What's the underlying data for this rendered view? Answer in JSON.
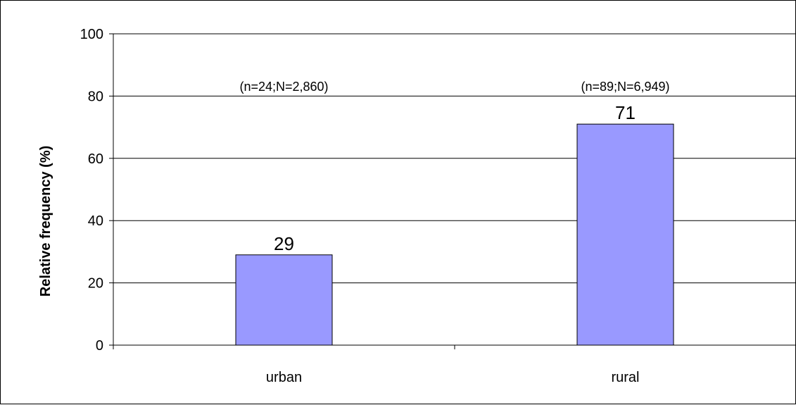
{
  "chart_data": {
    "type": "bar",
    "title": "",
    "xlabel": "",
    "ylabel": "Relative frequency (%)",
    "categories": [
      "urban",
      "rural"
    ],
    "values": [
      29,
      71
    ],
    "data_labels": [
      "29",
      "71"
    ],
    "annotations": [
      "(n=24;N=2,860)",
      "(n=89;N=6,949)"
    ],
    "annotation_y": 83,
    "ylim": [
      0,
      100
    ],
    "yticks": [
      0,
      20,
      40,
      60,
      80,
      100
    ],
    "grid": true,
    "legend": "none",
    "bar_color": "#9999ff",
    "bar_border_color": "#000000"
  }
}
